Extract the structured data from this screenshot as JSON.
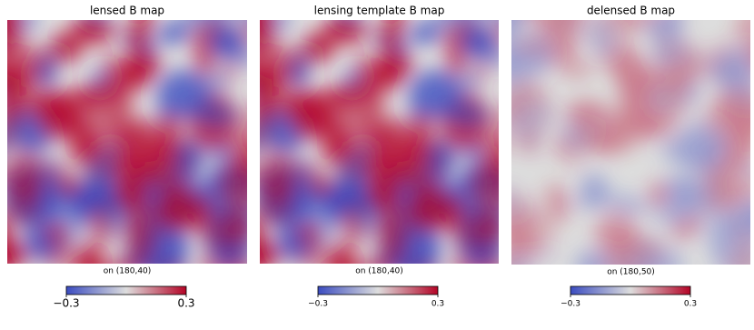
{
  "chart_data": [
    {
      "type": "heatmap",
      "title": "lensed B map",
      "subtitle": "on (180,40)",
      "colormap": [
        "#3b4cc0",
        "#dddddd",
        "#b40426"
      ],
      "clim": [
        -0.3,
        0.3
      ],
      "cticks": [
        {
          "value": -0.3,
          "label": "−0.3"
        },
        0.3
      ]
    },
    {
      "type": "heatmap",
      "title": "lensing template B map",
      "subtitle": "on (180,40)",
      "colormap": [
        "#3b4cc0",
        "#dddddd",
        "#b40426"
      ],
      "clim": [
        -0.3,
        0.3
      ],
      "cticks": [
        {
          "value": -0.3,
          "label": "−0.3"
        },
        0.3
      ]
    },
    {
      "type": "heatmap",
      "title": "delensed B map",
      "subtitle": "on (180,50)",
      "colormap": [
        "#3b4cc0",
        "#dddddd",
        "#b40426"
      ],
      "clim": [
        -0.3,
        0.3
      ],
      "cticks": [
        {
          "value": -0.3,
          "label": "−0.3"
        },
        0.3
      ]
    }
  ]
}
